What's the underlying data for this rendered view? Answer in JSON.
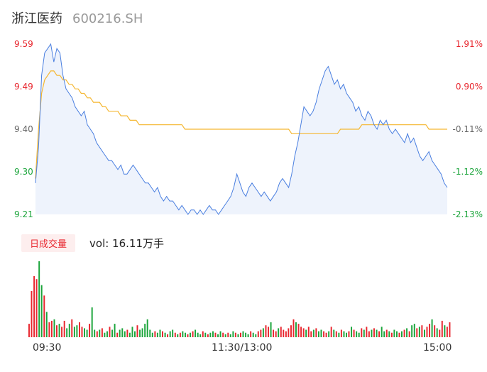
{
  "header": {
    "name": "浙江医药",
    "code": "600216.SH"
  },
  "colors": {
    "up": "#e8252d",
    "down": "#1aa43a",
    "price_line": "#4a7fe0",
    "avg_line": "#f5b731",
    "area_fill": "#eef3fc"
  },
  "volume_tab": {
    "label": "日成交量",
    "value_text": "vol: 16.11万手"
  },
  "chart_data": [
    {
      "type": "line",
      "title": "",
      "x_ticks": [
        "09:30",
        "11:30/13:00",
        "15:00"
      ],
      "y_left_ticks": [
        "9.59",
        "9.49",
        "9.40",
        "9.30",
        "9.21"
      ],
      "y_right_ticks": [
        "1.91%",
        "0.90%",
        "-0.11%",
        "-1.12%",
        "-2.13%"
      ],
      "ylim": [
        9.21,
        9.59
      ],
      "prev_close": 9.4,
      "grid": false,
      "series": [
        {
          "values": [
            9.28,
            9.36,
            9.52,
            9.57,
            9.58,
            9.59,
            9.55,
            9.58,
            9.57,
            9.52,
            9.49,
            9.48,
            9.47,
            9.45,
            9.44,
            9.43,
            9.44,
            9.41,
            9.4,
            9.39,
            9.37,
            9.36,
            9.35,
            9.34,
            9.33,
            9.33,
            9.32,
            9.31,
            9.32,
            9.3,
            9.3,
            9.31,
            9.32,
            9.31,
            9.3,
            9.29,
            9.28,
            9.28,
            9.27,
            9.26,
            9.27,
            9.25,
            9.24,
            9.25,
            9.24,
            9.24,
            9.23,
            9.22,
            9.23,
            9.22,
            9.21,
            9.22,
            9.22,
            9.21,
            9.22,
            9.21,
            9.22,
            9.23,
            9.22,
            9.22,
            9.21,
            9.22,
            9.23,
            9.24,
            9.25,
            9.27,
            9.3,
            9.28,
            9.26,
            9.25,
            9.27,
            9.28,
            9.27,
            9.26,
            9.25,
            9.26,
            9.25,
            9.24,
            9.25,
            9.26,
            9.28,
            9.29,
            9.28,
            9.27,
            9.3,
            9.34,
            9.37,
            9.41,
            9.45,
            9.44,
            9.43,
            9.44,
            9.46,
            9.49,
            9.51,
            9.53,
            9.54,
            9.52,
            9.5,
            9.51,
            9.49,
            9.5,
            9.48,
            9.47,
            9.46,
            9.44,
            9.45,
            9.43,
            9.42,
            9.44,
            9.43,
            9.41,
            9.4,
            9.42,
            9.41,
            9.42,
            9.4,
            9.39,
            9.4,
            9.39,
            9.38,
            9.37,
            9.39,
            9.37,
            9.38,
            9.36,
            9.34,
            9.33,
            9.34,
            9.35,
            9.33,
            9.32,
            9.31,
            9.3,
            9.28,
            9.27
          ]
        },
        {
          "values": [
            9.29,
            9.4,
            9.48,
            9.51,
            9.52,
            9.53,
            9.53,
            9.52,
            9.52,
            9.51,
            9.51,
            9.5,
            9.5,
            9.49,
            9.49,
            9.48,
            9.48,
            9.47,
            9.47,
            9.46,
            9.46,
            9.46,
            9.45,
            9.45,
            9.44,
            9.44,
            9.44,
            9.44,
            9.43,
            9.43,
            9.43,
            9.42,
            9.42,
            9.42,
            9.41,
            9.41,
            9.41,
            9.41,
            9.41,
            9.41,
            9.41,
            9.41,
            9.41,
            9.41,
            9.41,
            9.41,
            9.41,
            9.41,
            9.41,
            9.4,
            9.4,
            9.4,
            9.4,
            9.4,
            9.4,
            9.4,
            9.4,
            9.4,
            9.4,
            9.4,
            9.4,
            9.4,
            9.4,
            9.4,
            9.4,
            9.4,
            9.4,
            9.4,
            9.4,
            9.4,
            9.4,
            9.4,
            9.4,
            9.4,
            9.4,
            9.4,
            9.4,
            9.4,
            9.4,
            9.4,
            9.4,
            9.4,
            9.4,
            9.4,
            9.39,
            9.39,
            9.39,
            9.39,
            9.39,
            9.39,
            9.39,
            9.39,
            9.39,
            9.39,
            9.39,
            9.39,
            9.39,
            9.39,
            9.39,
            9.39,
            9.4,
            9.4,
            9.4,
            9.4,
            9.4,
            9.4,
            9.4,
            9.41,
            9.41,
            9.41,
            9.41,
            9.41,
            9.41,
            9.41,
            9.41,
            9.41,
            9.41,
            9.41,
            9.41,
            9.41,
            9.41,
            9.41,
            9.41,
            9.41,
            9.41,
            9.41,
            9.41,
            9.41,
            9.41,
            9.4,
            9.4,
            9.4,
            9.4,
            9.4,
            9.4,
            9.4
          ]
        }
      ]
    },
    {
      "type": "bar",
      "title": "",
      "series": [
        {
          "values": [
            18,
            62,
            82,
            78,
            102,
            70,
            56,
            34,
            20,
            22,
            24,
            16,
            18,
            14,
            22,
            12,
            18,
            24,
            14,
            16,
            20,
            14,
            12,
            10,
            18,
            40,
            10,
            8,
            10,
            12,
            6,
            8,
            14,
            10,
            18,
            6,
            10,
            12,
            8,
            10,
            6,
            14,
            8,
            16,
            10,
            12,
            18,
            24,
            10,
            6,
            8,
            6,
            10,
            8,
            6,
            4,
            8,
            10,
            6,
            4,
            6,
            8,
            6,
            4,
            6,
            8,
            10,
            6,
            4,
            8,
            6,
            4,
            6,
            8,
            6,
            4,
            8,
            6,
            4,
            6,
            4,
            8,
            6,
            4,
            6,
            8,
            6,
            4,
            8,
            6,
            4,
            8,
            10,
            12,
            16,
            14,
            20,
            10,
            8,
            12,
            14,
            10,
            8,
            12,
            16,
            24,
            20,
            18,
            14,
            12,
            10,
            14,
            8,
            10,
            12,
            8,
            10,
            8,
            6,
            8,
            14,
            10,
            8,
            6,
            10,
            8,
            6,
            8,
            14,
            10,
            8,
            6,
            12,
            10,
            14,
            8,
            10,
            12,
            10,
            8,
            14,
            8,
            10,
            8,
            6,
            10,
            8,
            6,
            8,
            10,
            12,
            8,
            16,
            18,
            12,
            14,
            16,
            10,
            14,
            18,
            24,
            16,
            12,
            10,
            22,
            16,
            14,
            20
          ],
          "directions": [
            1,
            1,
            1,
            1,
            -1,
            -1,
            1,
            -1,
            1,
            1,
            -1,
            1,
            -1,
            1,
            1,
            -1,
            -1,
            1,
            -1,
            -1,
            1,
            1,
            -1,
            -1,
            1,
            -1,
            -1,
            1,
            -1,
            1,
            -1,
            -1,
            1,
            -1,
            -1,
            1,
            -1,
            -1,
            -1,
            1,
            -1,
            -1,
            -1,
            1,
            -1,
            -1,
            -1,
            -1,
            -1,
            -1,
            1,
            -1,
            -1,
            1,
            -1,
            1,
            -1,
            -1,
            1,
            -1,
            1,
            -1,
            -1,
            1,
            -1,
            1,
            -1,
            -1,
            -1,
            1,
            -1,
            1,
            -1,
            -1,
            1,
            -1,
            -1,
            1,
            -1,
            1,
            -1,
            -1,
            1,
            -1,
            1,
            -1,
            -1,
            -1,
            1,
            -1,
            -1,
            1,
            1,
            -1,
            1,
            1,
            -1,
            1,
            1,
            -1,
            1,
            1,
            1,
            1,
            1,
            1,
            -1,
            1,
            1,
            1,
            -1,
            1,
            1,
            -1,
            1,
            -1,
            -1,
            1,
            1,
            -1,
            1,
            -1,
            1,
            -1,
            1,
            -1,
            -1,
            1,
            -1,
            1,
            -1,
            -1,
            1,
            -1,
            1,
            1,
            -1,
            1,
            -1,
            1,
            -1,
            -1,
            1,
            -1,
            1,
            -1,
            -1,
            1,
            -1,
            1,
            -1,
            1,
            -1,
            -1,
            1,
            -1,
            1,
            -1,
            1,
            1,
            -1,
            1,
            -1,
            1,
            1,
            -1,
            1,
            1,
            -1,
            1,
            1,
            -1,
            1
          ]
        }
      ]
    }
  ]
}
